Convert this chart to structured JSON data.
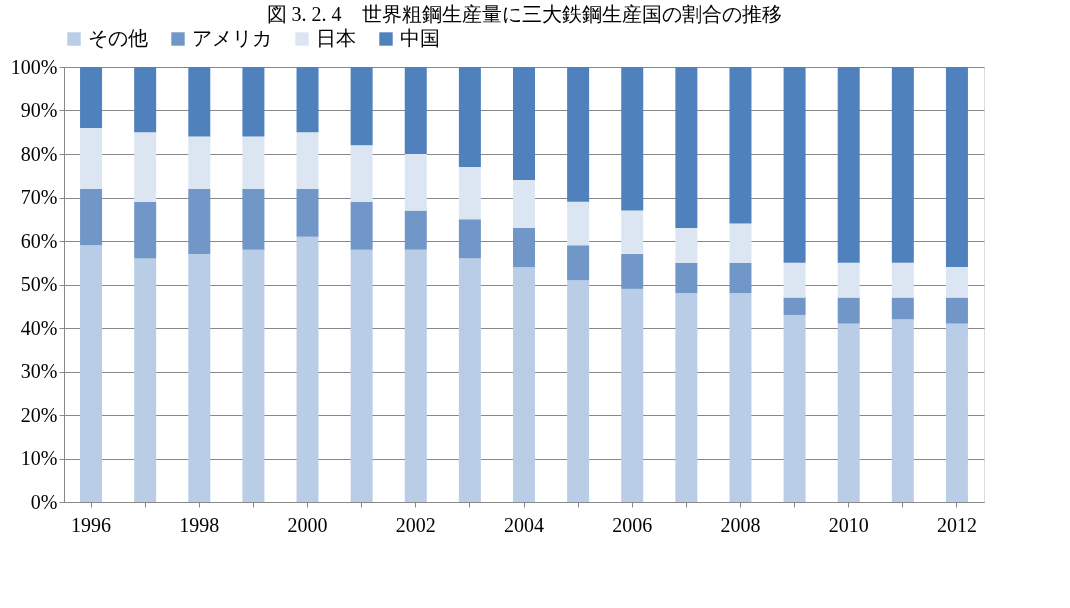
{
  "chart_data": {
    "type": "bar",
    "stacked": true,
    "title": "図 3. 2. 4　世界粗鋼生産量に三大鉄鋼生産国の割合の推移",
    "categories": [
      "1996",
      null,
      "1998",
      null,
      "2000",
      null,
      "2002",
      null,
      "2004",
      null,
      "2006",
      null,
      "2008",
      null,
      "2010",
      null,
      "2012"
    ],
    "series": [
      {
        "name": "その他",
        "color": "#b9cde6",
        "values": [
          59,
          56,
          57,
          58,
          61,
          58,
          58,
          56,
          54,
          51,
          49,
          48,
          48,
          43,
          41,
          42,
          41
        ]
      },
      {
        "name": "アメリカ",
        "color": "#7097c8",
        "values": [
          13,
          13,
          15,
          14,
          11,
          11,
          9,
          9,
          9,
          8,
          8,
          7,
          7,
          4,
          6,
          5,
          6
        ]
      },
      {
        "name": "日本",
        "color": "#dce6f2",
        "values": [
          14,
          16,
          12,
          12,
          13,
          13,
          13,
          12,
          11,
          10,
          10,
          8,
          9,
          8,
          8,
          8,
          7
        ]
      },
      {
        "name": "中国",
        "color": "#4f81bd",
        "values": [
          14,
          15,
          16,
          16,
          15,
          18,
          20,
          23,
          26,
          31,
          33,
          37,
          36,
          45,
          45,
          45,
          46
        ]
      }
    ],
    "ylim": [
      0,
      100
    ],
    "yticks": [
      {
        "value": 0,
        "label": "0%"
      },
      {
        "value": 10,
        "label": "10%"
      },
      {
        "value": 20,
        "label": "20%"
      },
      {
        "value": 30,
        "label": "30%"
      },
      {
        "value": 40,
        "label": "40%"
      },
      {
        "value": 50,
        "label": "50%"
      },
      {
        "value": 60,
        "label": "60%"
      },
      {
        "value": 70,
        "label": "70%"
      },
      {
        "value": 80,
        "label": "80%"
      },
      {
        "value": 90,
        "label": "90%"
      },
      {
        "value": 100,
        "label": "100%"
      }
    ],
    "grid": "y",
    "legend": "top"
  }
}
